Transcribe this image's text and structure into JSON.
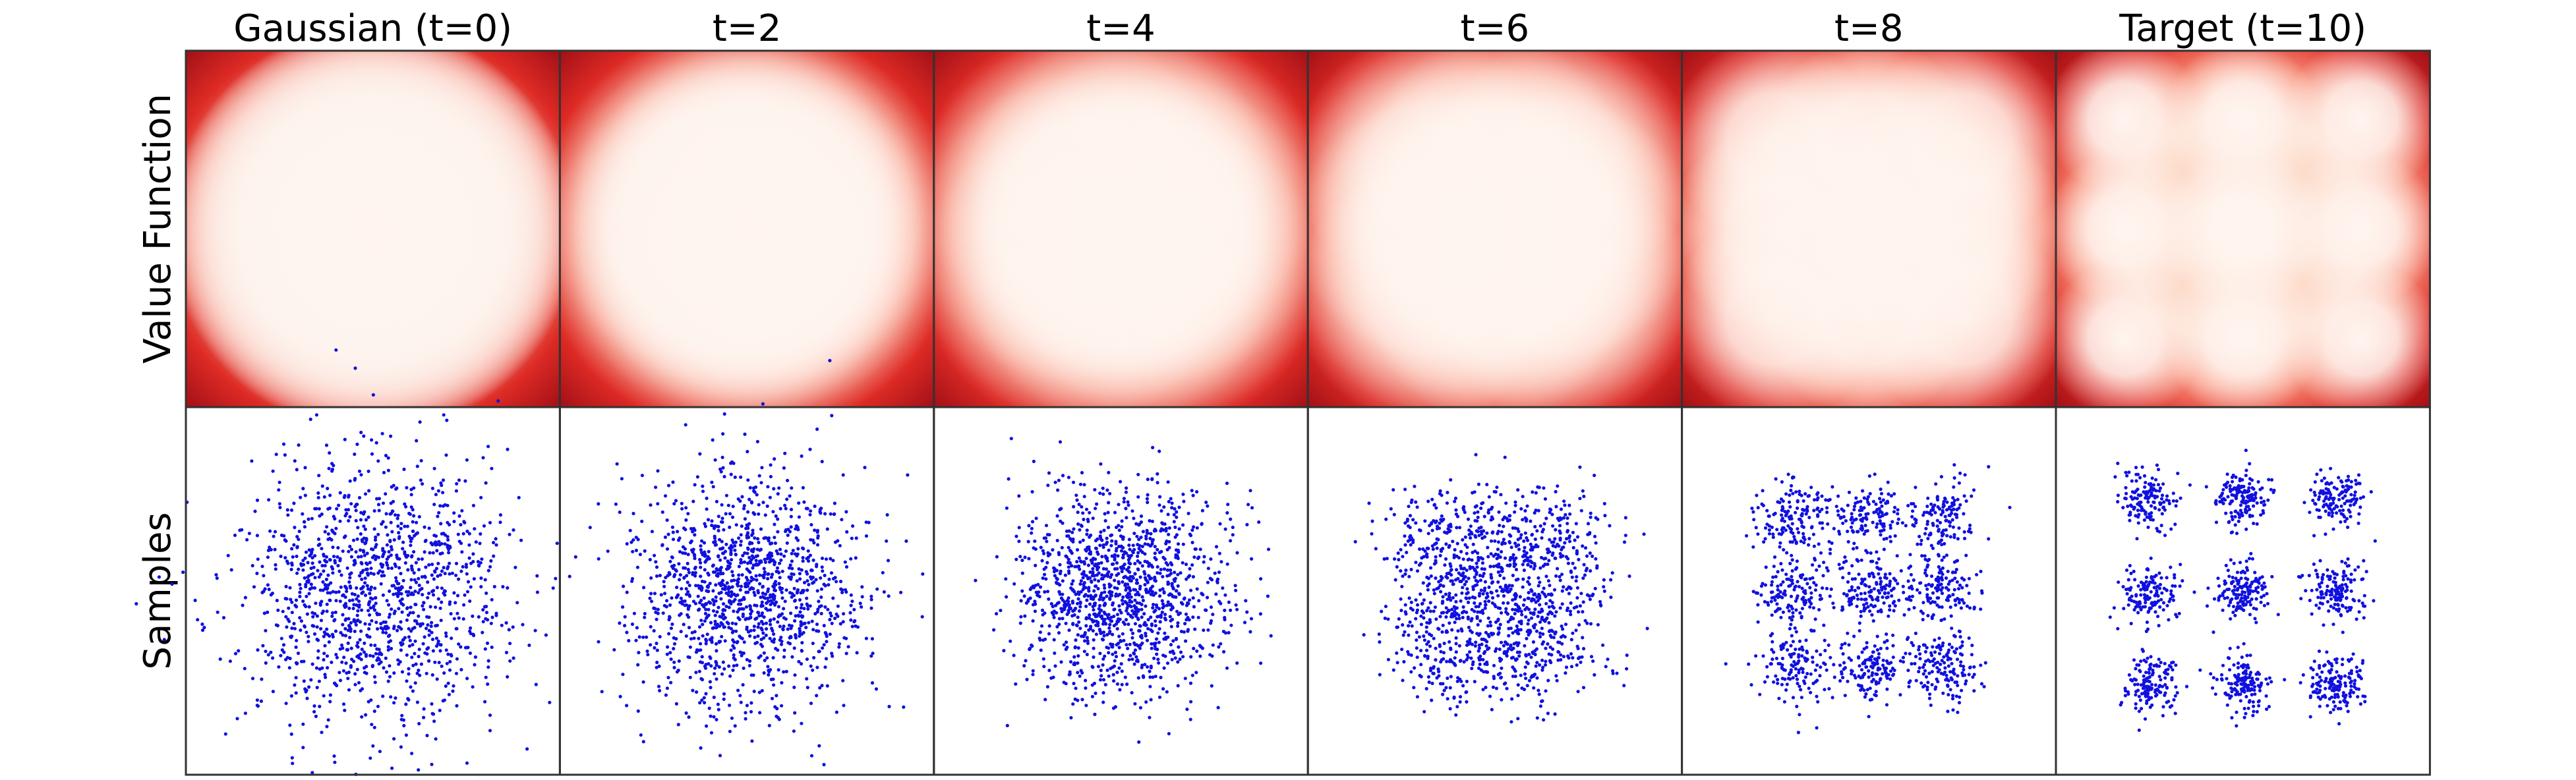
{
  "figure": {
    "column_titles": [
      "Gaussian (t=0)",
      "t=2",
      "t=4",
      "t=6",
      "t=8",
      "Target (t=10)"
    ],
    "row_labels": [
      "Value Function",
      "Samples"
    ]
  }
}
